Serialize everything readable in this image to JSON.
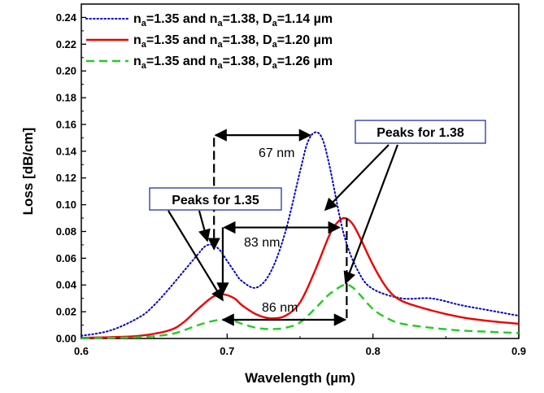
{
  "chart_data": {
    "type": "line",
    "title": "",
    "xlabel": "Wavelength (µm)",
    "ylabel": "Loss [dB/cm]",
    "xlim": [
      0.6,
      0.9
    ],
    "ylim": [
      0.0,
      0.25
    ],
    "xticks": [
      0.6,
      0.7,
      0.8,
      0.9
    ],
    "xtick_labels": [
      "0.6",
      "0.7",
      "0.8",
      "0.9"
    ],
    "yticks": [
      0.0,
      0.02,
      0.04,
      0.06,
      0.08,
      0.1,
      0.12,
      0.14,
      0.16,
      0.18,
      0.2,
      0.22,
      0.24
    ],
    "ytick_labels": [
      "0.00",
      "0.02",
      "0.04",
      "0.06",
      "0.08",
      "0.10",
      "0.12",
      "0.14",
      "0.16",
      "0.18",
      "0.20",
      "0.22",
      "0.24"
    ],
    "grid": false,
    "legend_position": "top-left",
    "series": [
      {
        "name": "n_a=1.35 and n_a=1.38, D_a=1.14 µm",
        "legend_main": "n",
        "legend_sub": "a",
        "legend_mid": "=1.35 and n",
        "legend_sub2": "a",
        "legend_mid2": "=1.38, D",
        "legend_sub3": "a",
        "legend_end": "=1.14 µm",
        "color": "#0000cc",
        "style": "dotted",
        "x": [
          0.6,
          0.62,
          0.64,
          0.65,
          0.66,
          0.67,
          0.68,
          0.685,
          0.69,
          0.695,
          0.7,
          0.705,
          0.71,
          0.72,
          0.73,
          0.74,
          0.75,
          0.755,
          0.76,
          0.765,
          0.77,
          0.78,
          0.79,
          0.8,
          0.82,
          0.84,
          0.86,
          0.88,
          0.9
        ],
        "y": [
          0.002,
          0.006,
          0.016,
          0.025,
          0.037,
          0.05,
          0.063,
          0.069,
          0.07,
          0.066,
          0.058,
          0.05,
          0.043,
          0.038,
          0.05,
          0.08,
          0.125,
          0.146,
          0.154,
          0.15,
          0.13,
          0.078,
          0.05,
          0.037,
          0.03,
          0.03,
          0.025,
          0.021,
          0.017
        ]
      },
      {
        "name": "n_a=1.35 and n_a=1.38, D_a=1.20 µm",
        "legend_main": "n",
        "legend_sub": "a",
        "legend_mid": "=1.35 and n",
        "legend_sub2": "a",
        "legend_mid2": "=1.38, D",
        "legend_sub3": "a",
        "legend_end": "=1.20 µm",
        "color": "#ee0000",
        "style": "solid",
        "x": [
          0.6,
          0.62,
          0.64,
          0.66,
          0.67,
          0.68,
          0.69,
          0.697,
          0.705,
          0.71,
          0.72,
          0.73,
          0.74,
          0.75,
          0.76,
          0.77,
          0.775,
          0.78,
          0.785,
          0.79,
          0.8,
          0.81,
          0.82,
          0.84,
          0.86,
          0.88,
          0.9
        ],
        "y": [
          0.0005,
          0.001,
          0.002,
          0.006,
          0.012,
          0.022,
          0.031,
          0.033,
          0.03,
          0.025,
          0.018,
          0.015,
          0.017,
          0.027,
          0.05,
          0.077,
          0.086,
          0.09,
          0.087,
          0.078,
          0.055,
          0.037,
          0.028,
          0.021,
          0.016,
          0.013,
          0.011
        ]
      },
      {
        "name": "n_a=1.35 and n_a=1.38, D_a=1.26 µm",
        "legend_main": "n",
        "legend_sub": "a",
        "legend_mid": "=1.35 and n",
        "legend_sub2": "a",
        "legend_mid2": "=1.38, D",
        "legend_sub3": "a",
        "legend_end": "=1.26 µm",
        "color": "#22cc22",
        "style": "dashed",
        "x": [
          0.6,
          0.64,
          0.66,
          0.67,
          0.68,
          0.69,
          0.697,
          0.705,
          0.71,
          0.72,
          0.73,
          0.74,
          0.75,
          0.76,
          0.77,
          0.78,
          0.785,
          0.79,
          0.8,
          0.81,
          0.82,
          0.84,
          0.86,
          0.88,
          0.9
        ],
        "y": [
          0.0002,
          0.001,
          0.003,
          0.006,
          0.01,
          0.013,
          0.014,
          0.013,
          0.011,
          0.008,
          0.007,
          0.008,
          0.012,
          0.022,
          0.033,
          0.04,
          0.039,
          0.034,
          0.022,
          0.015,
          0.011,
          0.008,
          0.006,
          0.005,
          0.004
        ]
      }
    ],
    "annotations": {
      "box_135": "Peaks for 1.35",
      "box_138": "Peaks for 1.38",
      "dim_67": "67 nm",
      "dim_83": "83 nm",
      "dim_86": "86 nm"
    }
  }
}
